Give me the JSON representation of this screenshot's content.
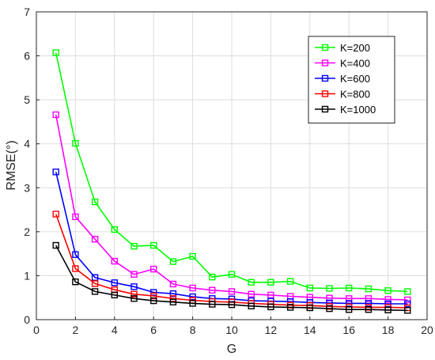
{
  "chart_data": {
    "type": "line",
    "xlabel": "G",
    "ylabel": "RMSE(°)",
    "xlim": [
      0,
      20
    ],
    "ylim": [
      0,
      7
    ],
    "xticks": [
      "0",
      "2",
      "4",
      "6",
      "8",
      "10",
      "12",
      "14",
      "16",
      "18",
      "20"
    ],
    "yticks": [
      "0",
      "1",
      "2",
      "3",
      "4",
      "5",
      "6",
      "7"
    ],
    "grid": true,
    "legend_position": "top-right",
    "marker": "square",
    "x": [
      1,
      2,
      3,
      4,
      5,
      6,
      7,
      8,
      9,
      10,
      11,
      12,
      13,
      14,
      15,
      16,
      17,
      18,
      19
    ],
    "series": [
      {
        "name": "K=200",
        "color": "#00ff00",
        "values": [
          6.07,
          4.01,
          2.68,
          2.05,
          1.67,
          1.69,
          1.32,
          1.44,
          0.97,
          1.03,
          0.85,
          0.85,
          0.87,
          0.72,
          0.71,
          0.72,
          0.7,
          0.66,
          0.64
        ]
      },
      {
        "name": "K=400",
        "color": "#ff00ff",
        "values": [
          4.66,
          2.34,
          1.83,
          1.33,
          1.03,
          1.15,
          0.81,
          0.72,
          0.67,
          0.64,
          0.58,
          0.56,
          0.53,
          0.51,
          0.49,
          0.48,
          0.48,
          0.46,
          0.45
        ]
      },
      {
        "name": "K=600",
        "color": "#0000ff",
        "values": [
          3.36,
          1.48,
          0.96,
          0.84,
          0.75,
          0.62,
          0.59,
          0.52,
          0.48,
          0.47,
          0.43,
          0.42,
          0.41,
          0.39,
          0.38,
          0.37,
          0.37,
          0.36,
          0.36
        ]
      },
      {
        "name": "K=800",
        "color": "#ff0000",
        "values": [
          2.4,
          1.16,
          0.82,
          0.68,
          0.58,
          0.54,
          0.48,
          0.44,
          0.41,
          0.4,
          0.37,
          0.35,
          0.33,
          0.32,
          0.3,
          0.29,
          0.28,
          0.28,
          0.27
        ]
      },
      {
        "name": "K=1000",
        "color": "#000000",
        "values": [
          1.69,
          0.86,
          0.64,
          0.56,
          0.48,
          0.43,
          0.4,
          0.37,
          0.35,
          0.34,
          0.31,
          0.29,
          0.28,
          0.27,
          0.25,
          0.23,
          0.23,
          0.22,
          0.21
        ]
      }
    ]
  }
}
